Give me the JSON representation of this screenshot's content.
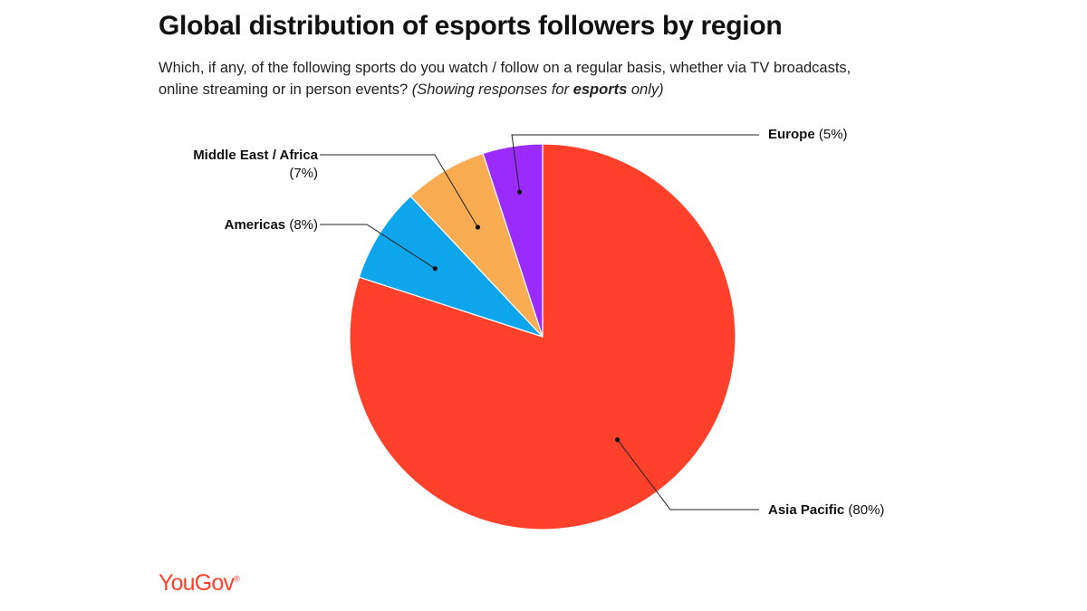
{
  "header": {
    "title": "Global distribution of esports followers by region",
    "subtitle_line1": "Which, if any, of the following sports do you watch / follow on a regular basis, whether via TV broadcasts,",
    "subtitle_line2_prefix": "online streaming or in person events? ",
    "subtitle_note_open": "(Showing responses for ",
    "subtitle_note_bold": "esports",
    "subtitle_note_close": " only)"
  },
  "brand": {
    "logo_text": "YouGov",
    "logo_mark": "®",
    "color": "#ff412c"
  },
  "chart_data": {
    "type": "pie",
    "start_angle_deg": 0,
    "direction": "clockwise",
    "slices": [
      {
        "name": "Asia Pacific",
        "value": 80,
        "label": "(80%)",
        "color": "#ff412c"
      },
      {
        "name": "Americas",
        "value": 8,
        "label": "(8%)",
        "color": "#0ea5ec"
      },
      {
        "name": "Middle East / Africa",
        "value": 7,
        "label": "(7%)",
        "color": "#f9ac52"
      },
      {
        "name": "Europe",
        "value": 5,
        "label": "(5%)",
        "color": "#9b2bfa"
      }
    ]
  }
}
